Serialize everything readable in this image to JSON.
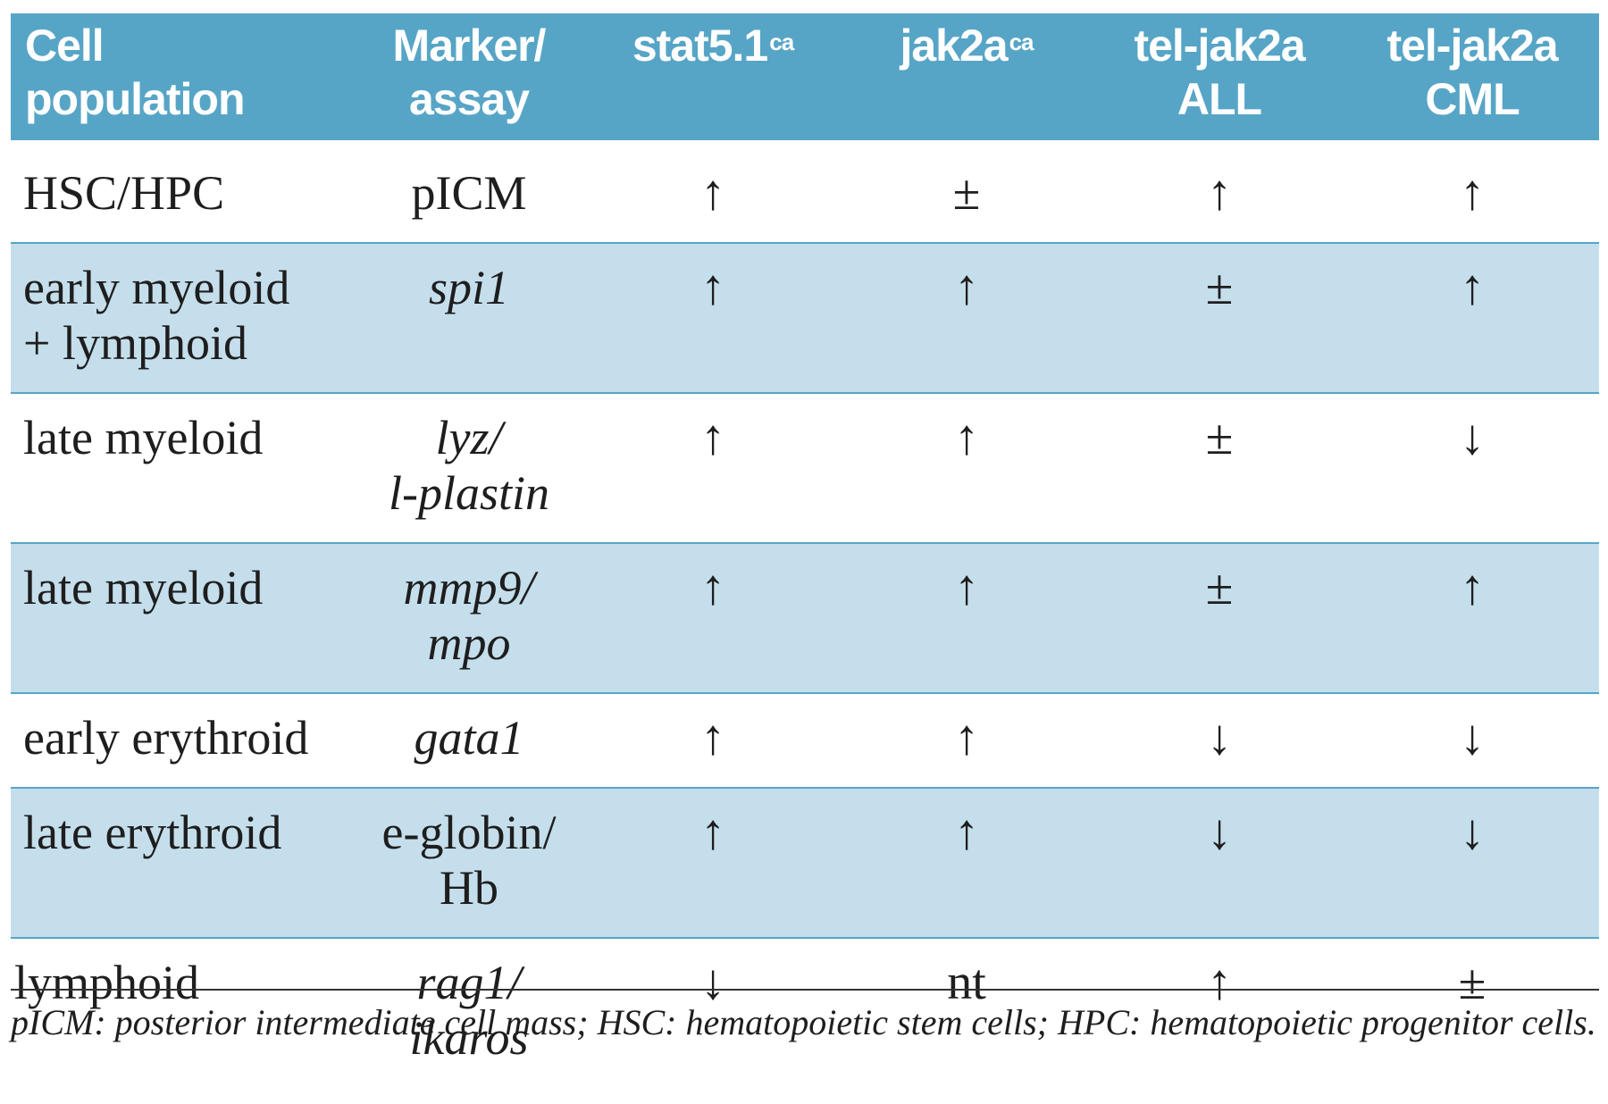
{
  "header": {
    "col1": [
      "Cell",
      "population"
    ],
    "col2": [
      "Marker/",
      "assay"
    ],
    "col3": {
      "base": "stat5.1",
      "sup": "ca"
    },
    "col4": {
      "base": "jak2a",
      "sup": "ca"
    },
    "col5": [
      "tel-jak2a",
      "ALL"
    ],
    "col6": [
      "tel-jak2a",
      "CML"
    ]
  },
  "rows": [
    {
      "pop": [
        "HSC/HPC"
      ],
      "marker": [
        "pICM"
      ],
      "stat": "↑",
      "jak": "±",
      "all": "↑",
      "cml": "↑"
    },
    {
      "pop": [
        "early myeloid",
        "+ lymphoid"
      ],
      "marker": [
        "spi1"
      ],
      "stat": "↑",
      "jak": "↑",
      "all": "±",
      "cml": "↑"
    },
    {
      "pop": [
        "late myeloid"
      ],
      "marker": [
        "lyz/",
        "l-plastin"
      ],
      "stat": "↑",
      "jak": "↑",
      "all": "±",
      "cml": "↓"
    },
    {
      "pop": [
        "late myeloid"
      ],
      "marker": [
        "mmp9/",
        "mpo"
      ],
      "stat": "↑",
      "jak": "↑",
      "all": "±",
      "cml": "↑"
    },
    {
      "pop": [
        "early erythroid"
      ],
      "marker": [
        "gata1"
      ],
      "stat": "↑",
      "jak": "↑",
      "all": "↓",
      "cml": "↓"
    },
    {
      "pop": [
        "late erythroid"
      ],
      "marker": [
        "e-globin/",
        "Hb"
      ],
      "stat": "↑",
      "jak": "↑",
      "all": "↓",
      "cml": "↓"
    },
    {
      "pop": [
        "lymphoid"
      ],
      "marker": [
        "rag1/",
        "ikaros"
      ],
      "stat": "↓",
      "jak": "nt",
      "all": "↑",
      "cml": "±"
    }
  ],
  "footnote": "pICM: posterior intermediate cell mass; HSC: hematopoietic stem cells; HPC: hematopoietic progenitor cells.",
  "colors": {
    "header_bg": "#57a5c6",
    "shaded_row_bg": "#c5deec",
    "header_text": "#ffffff"
  }
}
